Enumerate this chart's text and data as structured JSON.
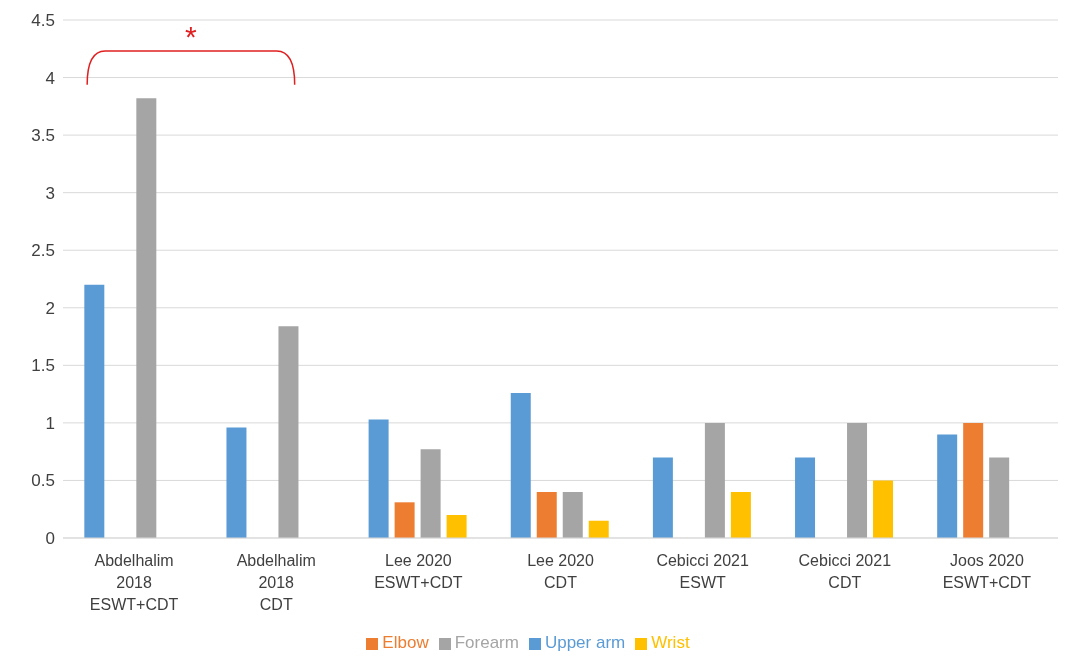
{
  "chart_data": {
    "type": "bar",
    "categories": [
      "Abdelhalim\n2018\nESWT+CDT",
      "Abdelhalim\n2018\nCDT",
      "Lee 2020\nESWT+CDT",
      "Lee 2020\nCDT",
      "Cebicci 2021\nESWT",
      "Cebicci 2021\nCDT",
      "Joos 2020\nESWT+CDT"
    ],
    "series": [
      {
        "name": "Upper arm",
        "color": "#5b9bd5",
        "values": [
          2.2,
          0.96,
          1.03,
          1.26,
          0.7,
          0.7,
          0.9
        ]
      },
      {
        "name": "Elbow",
        "color": "#ed7d31",
        "values": [
          null,
          null,
          0.31,
          0.4,
          null,
          null,
          1.0
        ]
      },
      {
        "name": "Forearm",
        "color": "#a5a5a5",
        "values": [
          3.82,
          1.84,
          0.77,
          0.4,
          1.0,
          1.0,
          0.7
        ]
      },
      {
        "name": "Wrist",
        "color": "#ffc000",
        "values": [
          null,
          null,
          0.2,
          0.15,
          0.4,
          0.5,
          null
        ]
      }
    ],
    "ylim": [
      0,
      4.5
    ],
    "yticks": [
      0,
      0.5,
      1,
      1.5,
      2,
      2.5,
      3,
      3.5,
      4,
      4.5
    ],
    "grid": "y",
    "legend": "bottom",
    "annotations": [
      "*"
    ]
  }
}
